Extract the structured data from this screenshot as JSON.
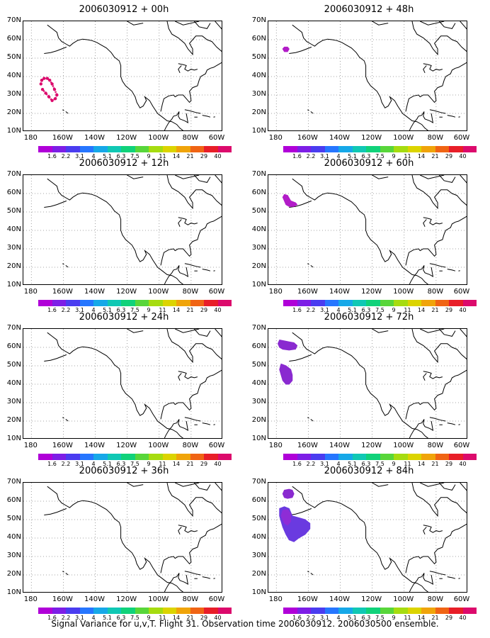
{
  "panels": [
    {
      "title": "2006030912 + 00h",
      "shade": "ring"
    },
    {
      "title": "2006030912 + 48h",
      "shade": "dot48"
    },
    {
      "title": "2006030912 + 12h",
      "shade": "none"
    },
    {
      "title": "2006030912 + 60h",
      "shade": "blob60"
    },
    {
      "title": "2006030912 + 24h",
      "shade": "none"
    },
    {
      "title": "2006030912 + 72h",
      "shade": "blob72"
    },
    {
      "title": "2006030912 + 36h",
      "shade": "none"
    },
    {
      "title": "2006030912 + 84h",
      "shade": "blob84"
    }
  ],
  "axes": {
    "lat_labels": [
      "70N",
      "60N",
      "50N",
      "40N",
      "30N",
      "20N",
      "10N"
    ],
    "lon_labels": [
      "180",
      "160W",
      "140W",
      "120W",
      "100W",
      "80W",
      "60W"
    ]
  },
  "colorbar": {
    "labels": [
      "1.6",
      "2.2",
      "3.1",
      "4",
      "5.1",
      "6.3",
      "7.5",
      "9",
      "11",
      "14",
      "21",
      "29",
      "40"
    ],
    "colors": [
      "#b000d8",
      "#7d1ee6",
      "#4a3cf0",
      "#2676ff",
      "#16a8e8",
      "#10c8b4",
      "#10d27a",
      "#58d63a",
      "#a6dc10",
      "#dcd400",
      "#f0a40a",
      "#f06414",
      "#e81e28",
      "#dc0a6c"
    ]
  },
  "footer": "Signal Variance for u,v,T. Flight 31. Observation time 2006030912. 2006030500 ensemble."
}
